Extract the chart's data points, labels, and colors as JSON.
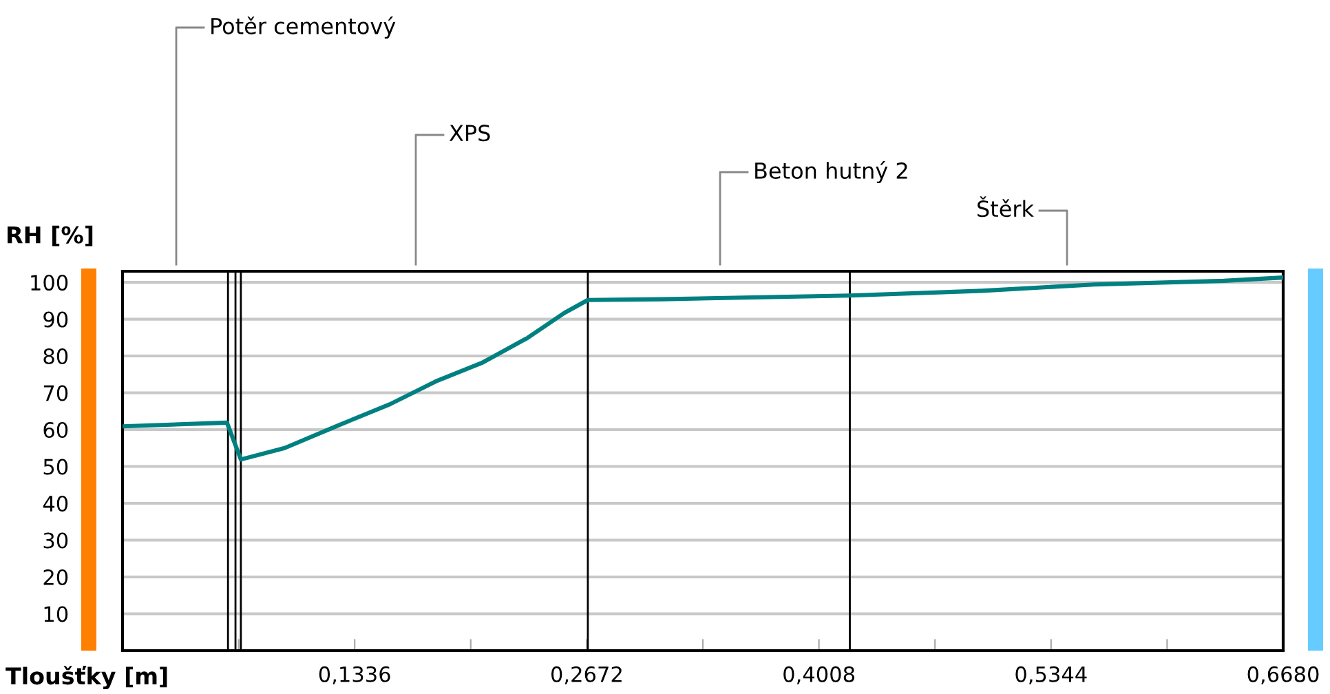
{
  "chart_data": {
    "type": "line",
    "xlabel": "Tloušťky [m]",
    "ylabel": "RH [%]",
    "xlim": [
      0,
      0.668
    ],
    "ylim": [
      0,
      103
    ],
    "xticks": [
      {
        "value": 0.0668,
        "label": null
      },
      {
        "value": 0.1336,
        "label": "0,1336"
      },
      {
        "value": 0.2004,
        "label": null
      },
      {
        "value": 0.2672,
        "label": "0,2672"
      },
      {
        "value": 0.334,
        "label": null
      },
      {
        "value": 0.4008,
        "label": "0,4008"
      },
      {
        "value": 0.4676,
        "label": null
      },
      {
        "value": 0.5344,
        "label": "0,5344"
      },
      {
        "value": 0.6012,
        "label": null
      },
      {
        "value": 0.668,
        "label": "0,6680"
      }
    ],
    "yticks": [
      10,
      20,
      30,
      40,
      50,
      60,
      70,
      80,
      90,
      100
    ],
    "grid": "y",
    "marker": "none",
    "line_style": "solid",
    "series": [
      {
        "color": "#008080",
        "x": [
          0,
          0.0601,
          0.0681,
          0.0933,
          0.1249,
          0.1539,
          0.1803,
          0.2067,
          0.2331,
          0.2543,
          0.2678,
          0.3098,
          0.4186,
          0.4947,
          0.5592,
          0.6338,
          0.668
        ],
        "values": [
          60.9,
          61.9,
          51.9,
          55.0,
          61.3,
          66.9,
          73.1,
          78.1,
          84.9,
          91.7,
          95.2,
          95.4,
          96.4,
          97.7,
          99.4,
          100.4,
          101.3
        ]
      }
    ],
    "ref_lines": [
      {
        "axis": "x",
        "value": 0.0607,
        "color": "#000000"
      },
      {
        "axis": "x",
        "value": 0.065,
        "color": "#000000"
      },
      {
        "axis": "x",
        "value": 0.0681,
        "color": "#000000"
      },
      {
        "axis": "x",
        "value": 0.2678,
        "color": "#000000"
      },
      {
        "axis": "x",
        "value": 0.4186,
        "color": "#000000"
      }
    ],
    "annotations": [
      "Potěr cementový",
      "XPS",
      "Beton hutný 2",
      "Štěrk"
    ]
  }
}
